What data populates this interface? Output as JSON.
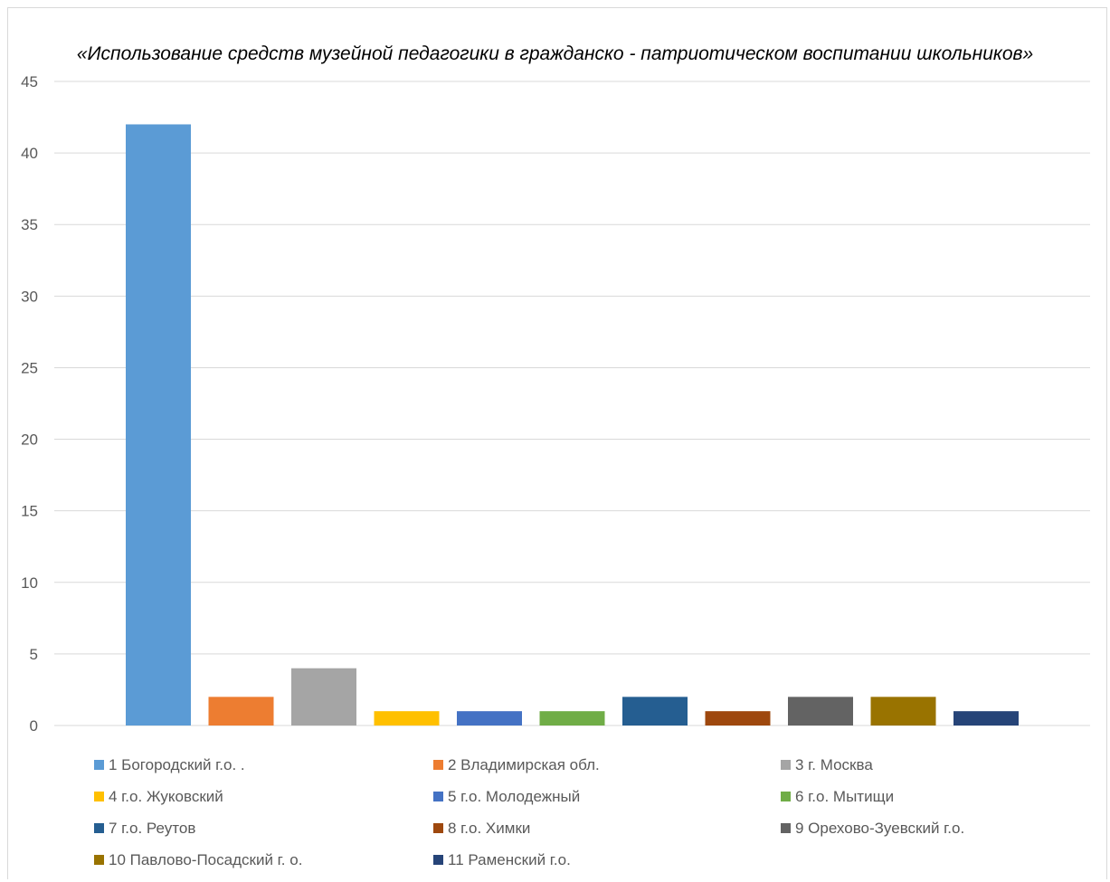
{
  "chart_data": {
    "type": "bar",
    "title": "«Использование  средств  музейной  педагогики  в  гражданско  -  патриотическом  воспитании  школьников»",
    "categories": [
      "1 Богородский г.о. .",
      "2 Владимирская обл.",
      "3 г. Москва",
      "4 г.о. Жуковский",
      "5 г.о. Молодежный",
      "6 г.о. Мытищи",
      "7 г.о. Реутов",
      "8 г.о. Химки",
      "9 Орехово-Зуевский г.о.",
      "10 Павлово-Посадский г. о.",
      "11 Раменский г.о."
    ],
    "values": [
      42,
      2,
      4,
      1,
      1,
      1,
      2,
      1,
      2,
      2,
      1
    ],
    "colors": [
      "#5b9bd5",
      "#ed7d31",
      "#a5a5a5",
      "#ffc000",
      "#4472c4",
      "#70ad47",
      "#255e91",
      "#9e480e",
      "#636363",
      "#997300",
      "#264478"
    ],
    "ylim": [
      0,
      45
    ],
    "yticks": [
      0,
      5,
      10,
      15,
      20,
      25,
      30,
      35,
      40,
      45
    ],
    "grid": true,
    "legend_position": "bottom",
    "xlabel": "",
    "ylabel": ""
  }
}
